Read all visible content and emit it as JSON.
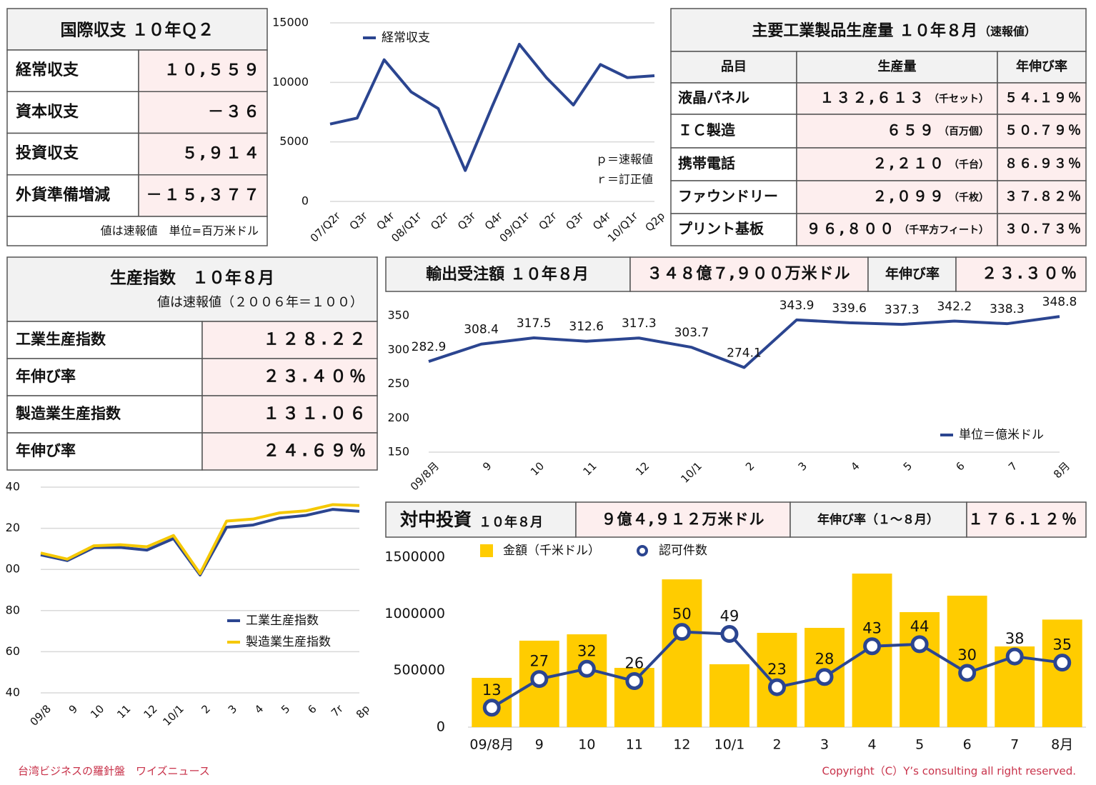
{
  "balance": {
    "title": "国際収支 １０年Ｑ２",
    "rows": [
      [
        "経常収支",
        "１０,５５９"
      ],
      [
        "資本収支",
        "－３６"
      ],
      [
        "投資収支",
        "５,９１４"
      ],
      [
        "外貨準備増減",
        "－１５,３７７"
      ]
    ],
    "note": "値は速報値　単位=百万米ドル"
  },
  "products": {
    "title": "主要工業製品生産量 １０年８月",
    "subtitle": "（速報値）",
    "headers": [
      "品目",
      "生産量",
      "年伸び率"
    ],
    "rows": [
      [
        "液晶パネル",
        "１３２,６１３",
        "（千セット）",
        "５４.１９％"
      ],
      [
        "ＩＣ製造",
        "６５９",
        "（百万個）",
        "５０.７９％"
      ],
      [
        "携帯電話",
        "２,２１０",
        "（千台）",
        "８６.９３％"
      ],
      [
        "ファウンドリー",
        "２,０９９",
        "（千枚）",
        "３７.８２％"
      ],
      [
        "プリント基板",
        "９６,８００",
        "（千平方フィート）",
        "３０.７３％"
      ]
    ]
  },
  "index": {
    "title": "生産指数　１０年８月",
    "note": "値は速報値（２００６年＝１００）",
    "rows": [
      [
        "工業生産指数",
        "１２８.２２"
      ],
      [
        "年伸び率",
        "２３.４０％"
      ],
      [
        "製造業生産指数",
        "１３１.０６"
      ],
      [
        "年伸び率",
        "２４.６９％"
      ]
    ]
  },
  "export_orders": {
    "title": "輸出受注額 １０年８月",
    "value": "３４８億７,９００万米ドル",
    "growth_label": "年伸び率",
    "growth": "２３.３０％"
  },
  "china_investment": {
    "title": "対中投資",
    "period": "１０年８月",
    "value": "９億４,９１２万米ドル",
    "growth_label": "年伸び率（１～８月）",
    "growth": "１７６.１２％"
  },
  "chart_data": [
    {
      "type": "line",
      "categories": [
        "07/Q2r",
        "Q3r",
        "Q4r",
        "08/Q1r",
        "Q2r",
        "Q3r",
        "Q4r",
        "09/Q1r",
        "Q2r",
        "Q3r",
        "Q4r",
        "10/Q1r",
        "Q2p"
      ],
      "series": [
        {
          "name": "経常収支",
          "color": "#2b4590",
          "values": [
            6500,
            7000,
            11900,
            9200,
            7800,
            2600,
            8000,
            13200,
            10400,
            8100,
            11500,
            10400,
            10559
          ]
        }
      ],
      "ylim": [
        0,
        15000
      ],
      "yticks": [
        0,
        5000,
        10000,
        15000
      ],
      "grid": true,
      "legend": "top-left",
      "annotations": [
        "ｐ＝速報値",
        "ｒ＝訂正値"
      ]
    },
    {
      "type": "line",
      "categories": [
        "09/8月",
        "9",
        "10",
        "11",
        "12",
        "10/1",
        "2",
        "3",
        "4",
        "5",
        "6",
        "7",
        "8月"
      ],
      "series": [
        {
          "name": "単位＝億米ドル",
          "color": "#2b4590",
          "values": [
            282.9,
            308.4,
            317.5,
            312.6,
            317.3,
            303.7,
            274.1,
            343.9,
            339.6,
            337.3,
            342.2,
            338.3,
            348.8
          ]
        }
      ],
      "ylim": [
        150,
        350
      ],
      "yticks": [
        150,
        200,
        250,
        300,
        350
      ],
      "grid": false,
      "legend": "bottom-right",
      "data_labels": true
    },
    {
      "type": "line",
      "categories": [
        "09/8",
        "9",
        "10",
        "11",
        "12",
        "10/1",
        "2",
        "3",
        "4",
        "5",
        "6",
        "7r",
        "8p"
      ],
      "series": [
        {
          "name": "工業生産指数",
          "color": "#2b4590",
          "values": [
            107.1,
            104.3,
            110.6,
            110.7,
            109.4,
            115.0,
            97.3,
            120.5,
            121.6,
            125.0,
            126.3,
            129.2,
            128.22
          ]
        },
        {
          "name": "製造業生産指数",
          "color": "#f5c800",
          "values": [
            108.0,
            105.0,
            111.5,
            112.0,
            111.0,
            116.5,
            98.0,
            123.5,
            124.5,
            127.5,
            128.5,
            131.5,
            131.06
          ]
        }
      ],
      "ylim": [
        40,
        140
      ],
      "yticks": [
        40,
        60,
        80,
        {
          "value": 100,
          "label": "00"
        },
        {
          "value": 120,
          "label": "20"
        },
        {
          "value": 140,
          "label": "40"
        }
      ],
      "grid": true,
      "legend": "bottom-right"
    },
    {
      "type": "bar",
      "categories": [
        "09/8月",
        "9",
        "10",
        "11",
        "12",
        "10/1",
        "2",
        "3",
        "4",
        "5",
        "6",
        "7",
        "8月"
      ],
      "series": [
        {
          "name": "金額（千米ドル）",
          "color": "#ffcc00",
          "values": [
            435000,
            763000,
            819000,
            523000,
            1304000,
            555000,
            832000,
            876000,
            1355000,
            1015000,
            1160000,
            712000,
            949120
          ]
        },
        {
          "name": "認可件数",
          "color": "#2b4590",
          "type": "line",
          "axis": "y2",
          "values": [
            13,
            27,
            32,
            26,
            50,
            49,
            23,
            28,
            43,
            44,
            30,
            38,
            35
          ]
        }
      ],
      "ylim": [
        0,
        1500000
      ],
      "yticks": [
        0,
        500000,
        1000000,
        1500000
      ],
      "y2lim": [
        3.5,
        86.5
      ],
      "grid": false,
      "legend": "top",
      "data_labels": true
    }
  ],
  "footer": {
    "left": "台湾ビジネスの羅針盤　ワイズニュース",
    "right": "Copyright（C）Y’s consulting all right reserved."
  }
}
